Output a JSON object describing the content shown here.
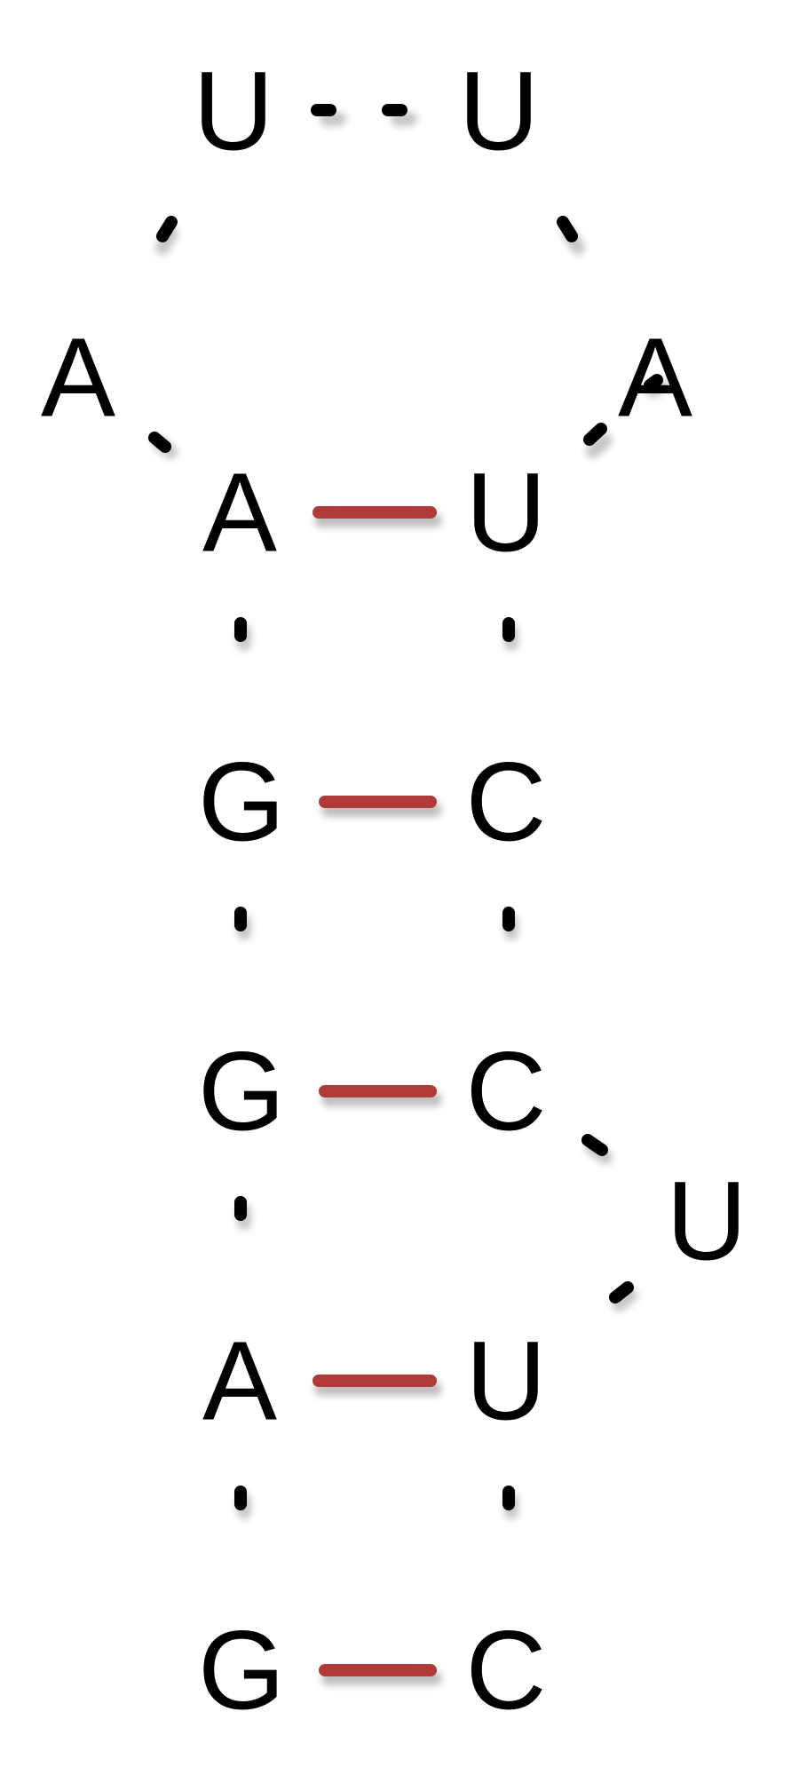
{
  "diagram": {
    "bases": [
      {
        "id": "top-left-U",
        "letter": "U"
      },
      {
        "id": "top-right-U",
        "letter": "U"
      },
      {
        "id": "loop-left-A",
        "letter": "A"
      },
      {
        "id": "loop-right-A",
        "letter": "A"
      },
      {
        "id": "stem1-left-A",
        "letter": "A"
      },
      {
        "id": "stem1-right-U",
        "letter": "U"
      },
      {
        "id": "stem2-left-G",
        "letter": "G"
      },
      {
        "id": "stem2-right-C",
        "letter": "C"
      },
      {
        "id": "stem3-left-G",
        "letter": "G"
      },
      {
        "id": "stem3-right-C",
        "letter": "C"
      },
      {
        "id": "bulge-U",
        "letter": "U"
      },
      {
        "id": "stem4-left-A",
        "letter": "A"
      },
      {
        "id": "stem4-right-U",
        "letter": "U"
      },
      {
        "id": "stem5-left-G",
        "letter": "G"
      },
      {
        "id": "stem5-right-C",
        "letter": "C"
      }
    ],
    "pair_color": "#b03a37",
    "backbone_color": "#000000"
  }
}
